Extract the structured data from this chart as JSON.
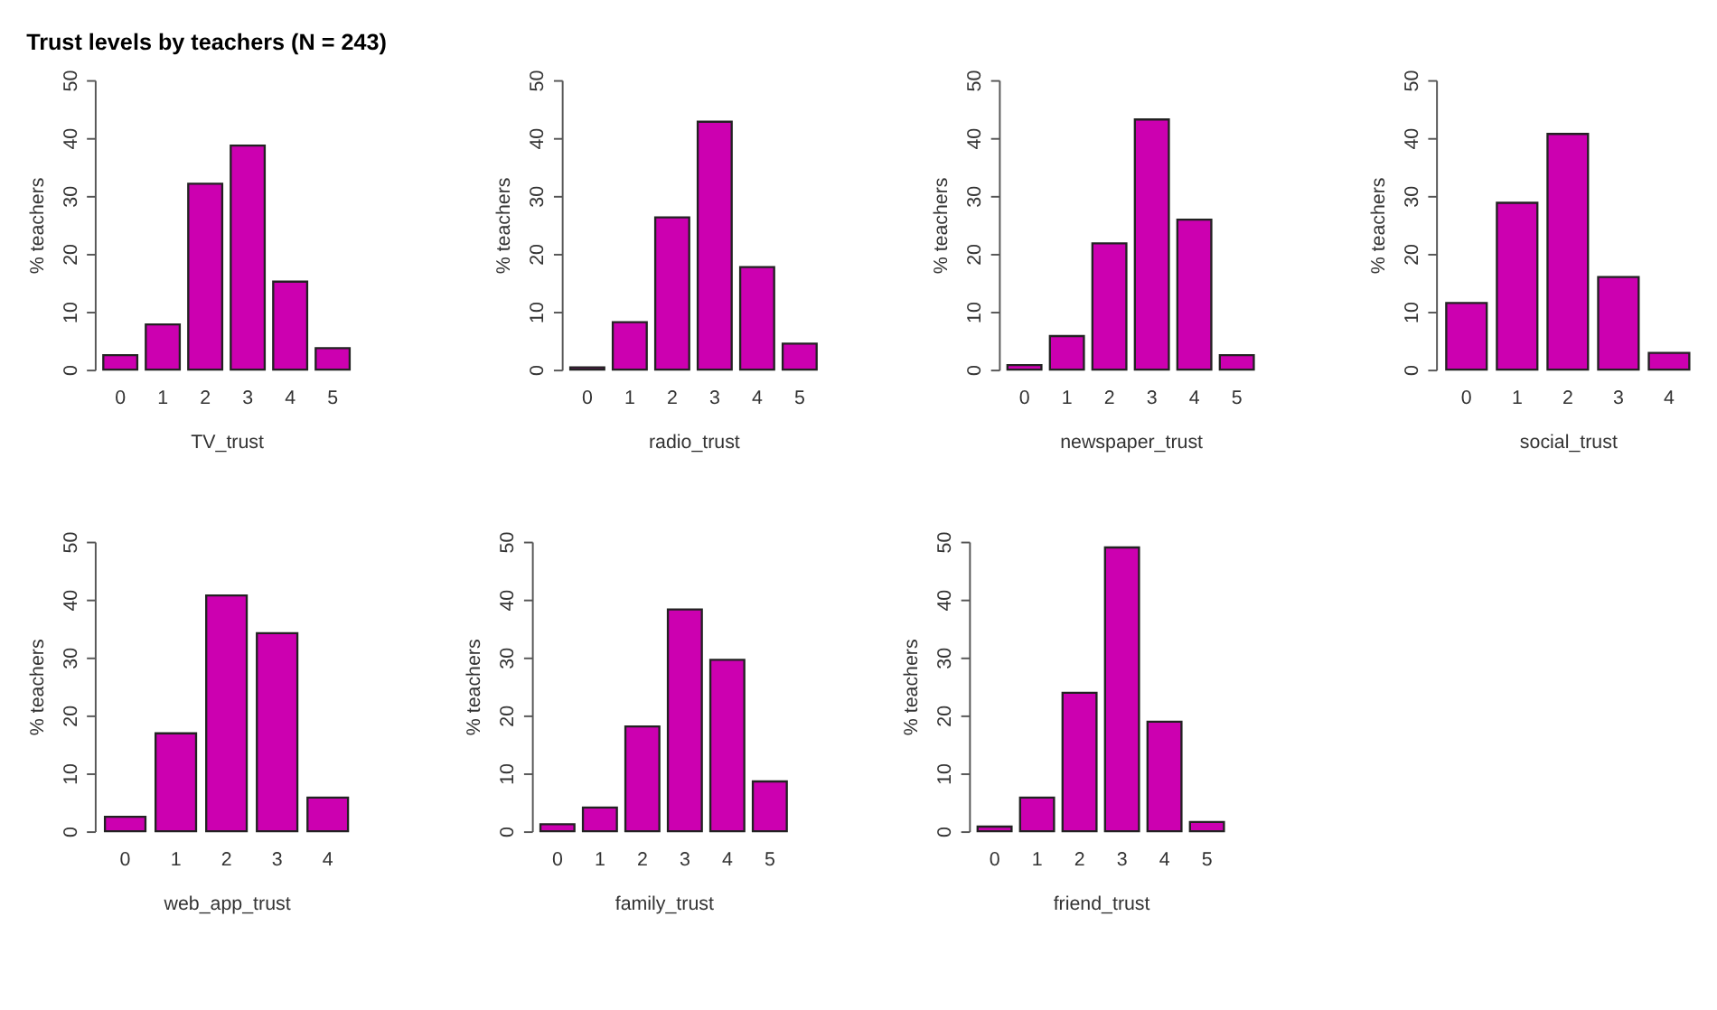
{
  "chart_data": [
    {
      "type": "bar",
      "title": "Trust levels by teachers (N = 243)",
      "categories": [
        "0",
        "1",
        "2",
        "3",
        "4",
        "5"
      ],
      "values": [
        2.5,
        7.8,
        32.1,
        38.7,
        15.2,
        3.7
      ],
      "color": "#cc00b0",
      "xlabel": "TV_trust",
      "ylabel": "% teachers",
      "ylim": [
        0,
        50
      ],
      "yticks": [
        0,
        10,
        20,
        30,
        40,
        50
      ],
      "grid": false
    },
    {
      "type": "bar",
      "categories": [
        "0",
        "1",
        "2",
        "3",
        "4",
        "5"
      ],
      "values": [
        0.4,
        8.2,
        26.3,
        42.8,
        17.7,
        4.5
      ],
      "color": "#cc00b0",
      "xlabel": "radio_trust",
      "ylabel": "% teachers",
      "ylim": [
        0,
        50
      ],
      "yticks": [
        0,
        10,
        20,
        30,
        40,
        50
      ],
      "grid": false
    },
    {
      "type": "bar",
      "categories": [
        "0",
        "1",
        "2",
        "3",
        "4",
        "5"
      ],
      "values": [
        0.8,
        5.8,
        21.8,
        43.2,
        25.9,
        2.5
      ],
      "color": "#cc00b0",
      "xlabel": "newspaper_trust",
      "ylabel": "% teachers",
      "ylim": [
        0,
        50
      ],
      "yticks": [
        0,
        10,
        20,
        30,
        40,
        50
      ],
      "grid": false
    },
    {
      "type": "bar",
      "categories": [
        "0",
        "1",
        "2",
        "3",
        "4"
      ],
      "values": [
        11.5,
        28.8,
        40.7,
        16.0,
        2.9
      ],
      "color": "#cc00b0",
      "xlabel": "social_trust",
      "ylabel": "% teachers",
      "ylim": [
        0,
        50
      ],
      "yticks": [
        0,
        10,
        20,
        30,
        40,
        50
      ],
      "grid": false
    },
    {
      "type": "bar",
      "categories": [
        "0",
        "1",
        "2",
        "3",
        "4"
      ],
      "values": [
        2.5,
        16.9,
        40.7,
        34.2,
        5.8
      ],
      "color": "#cc00b0",
      "xlabel": "web_app_trust",
      "ylabel": "% teachers",
      "ylim": [
        0,
        50
      ],
      "yticks": [
        0,
        10,
        20,
        30,
        40,
        50
      ],
      "grid": false
    },
    {
      "type": "bar",
      "categories": [
        "0",
        "1",
        "2",
        "3",
        "4",
        "5"
      ],
      "values": [
        1.2,
        4.1,
        18.1,
        38.3,
        29.6,
        8.6
      ],
      "color": "#cc00b0",
      "xlabel": "family_trust",
      "ylabel": "% teachers",
      "ylim": [
        0,
        50
      ],
      "yticks": [
        0,
        10,
        20,
        30,
        40,
        50
      ],
      "grid": false
    },
    {
      "type": "bar",
      "categories": [
        "0",
        "1",
        "2",
        "3",
        "4",
        "5"
      ],
      "values": [
        0.8,
        5.8,
        23.9,
        49.0,
        18.9,
        1.6
      ],
      "color": "#cc00b0",
      "xlabel": "friend_trust",
      "ylabel": "% teachers",
      "ylim": [
        0,
        50
      ],
      "yticks": [
        0,
        10,
        20,
        30,
        40,
        50
      ],
      "grid": false
    }
  ]
}
